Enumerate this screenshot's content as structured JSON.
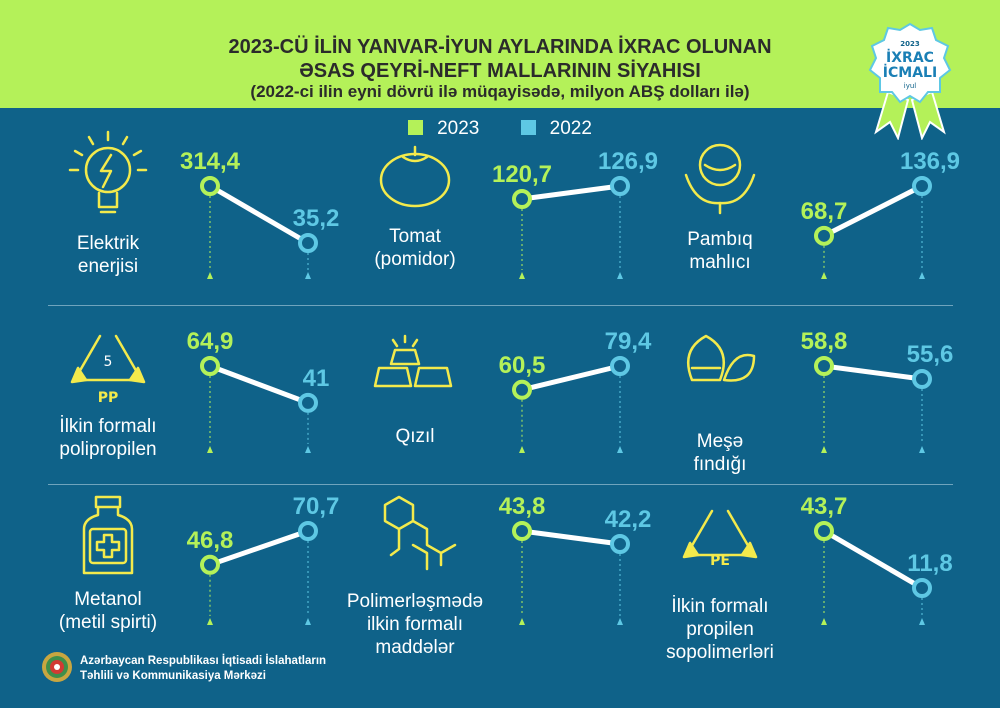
{
  "header": {
    "title_line1": "2023-CÜ İLİN YANVAR-İYUN AYLARINDA İXRAC OLUNAN",
    "title_line2": "ƏSAS QEYRİ-NEFT MALLARININ SİYAHISI",
    "subtitle": "(2022-ci ilin eyni dövrü ilə müqayisədə, milyon ABŞ dolları ilə)",
    "badge": {
      "year": "2023",
      "line1": "İXRAC",
      "line2": "İCMALI",
      "month": "iyul"
    }
  },
  "colors": {
    "series_2023": "#b4f159",
    "series_2022": "#5ec8e4",
    "background": "#0f6289",
    "icon": "#f3ea4c"
  },
  "legend": [
    {
      "label": "2023",
      "color": "#b4f159"
    },
    {
      "label": "2022",
      "color": "#5ec8e4"
    }
  ],
  "chart_data": [
    {
      "type": "line",
      "name_lines": [
        "Elektrik",
        "enerjisi"
      ],
      "icon": "lightbulb-icon",
      "series": [
        {
          "name": "2023",
          "value": 314.4,
          "label": "314,4"
        },
        {
          "name": "2022",
          "value": 35.2,
          "label": "35,2"
        }
      ]
    },
    {
      "type": "line",
      "name_lines": [
        "Tomat",
        "(pomidor)"
      ],
      "icon": "tomato-icon",
      "series": [
        {
          "name": "2023",
          "value": 120.7,
          "label": "120,7"
        },
        {
          "name": "2022",
          "value": 126.9,
          "label": "126,9"
        }
      ]
    },
    {
      "type": "line",
      "name_lines": [
        "Pambıq",
        "mahlıcı"
      ],
      "icon": "cotton-icon",
      "series": [
        {
          "name": "2023",
          "value": 68.7,
          "label": "68,7"
        },
        {
          "name": "2022",
          "value": 136.9,
          "label": "136,9"
        }
      ]
    },
    {
      "type": "line",
      "name_lines": [
        "İlkin formalı",
        "polipropilen"
      ],
      "icon": "recycle-pp-icon",
      "icon_text": "PP",
      "series": [
        {
          "name": "2023",
          "value": 64.9,
          "label": "64,9"
        },
        {
          "name": "2022",
          "value": 41,
          "label": "41"
        }
      ]
    },
    {
      "type": "line",
      "name_lines": [
        "Qızıl"
      ],
      "icon": "gold-bars-icon",
      "series": [
        {
          "name": "2023",
          "value": 60.5,
          "label": "60,5"
        },
        {
          "name": "2022",
          "value": 79.4,
          "label": "79,4"
        }
      ]
    },
    {
      "type": "line",
      "name_lines": [
        "Meşə",
        "fındığı"
      ],
      "icon": "hazelnut-icon",
      "series": [
        {
          "name": "2023",
          "value": 58.8,
          "label": "58,8"
        },
        {
          "name": "2022",
          "value": 55.6,
          "label": "55,6"
        }
      ]
    },
    {
      "type": "line",
      "name_lines": [
        "Metanol",
        "(metil spirti)"
      ],
      "icon": "medicine-bottle-icon",
      "series": [
        {
          "name": "2023",
          "value": 46.8,
          "label": "46,8"
        },
        {
          "name": "2022",
          "value": 70.7,
          "label": "70,7"
        }
      ]
    },
    {
      "type": "line",
      "name_lines": [
        "Polimerləşmədə",
        "ilkin formalı",
        "maddələr"
      ],
      "icon": "molecule-icon",
      "series": [
        {
          "name": "2023",
          "value": 43.8,
          "label": "43,8"
        },
        {
          "name": "2022",
          "value": 42.2,
          "label": "42,2"
        }
      ]
    },
    {
      "type": "line",
      "name_lines": [
        "İlkin formalı",
        "propilen",
        "sopolimerləri"
      ],
      "icon": "recycle-pe-icon",
      "icon_text": "PE",
      "series": [
        {
          "name": "2023",
          "value": 43.7,
          "label": "43,7"
        },
        {
          "name": "2022",
          "value": 11.8,
          "label": "11,8"
        }
      ]
    }
  ],
  "footer": {
    "org_line1": "Azərbaycan Respublikası İqtisadi İslahatların",
    "org_line2": "Təhlili və Kommunikasiya Mərkəzi"
  }
}
